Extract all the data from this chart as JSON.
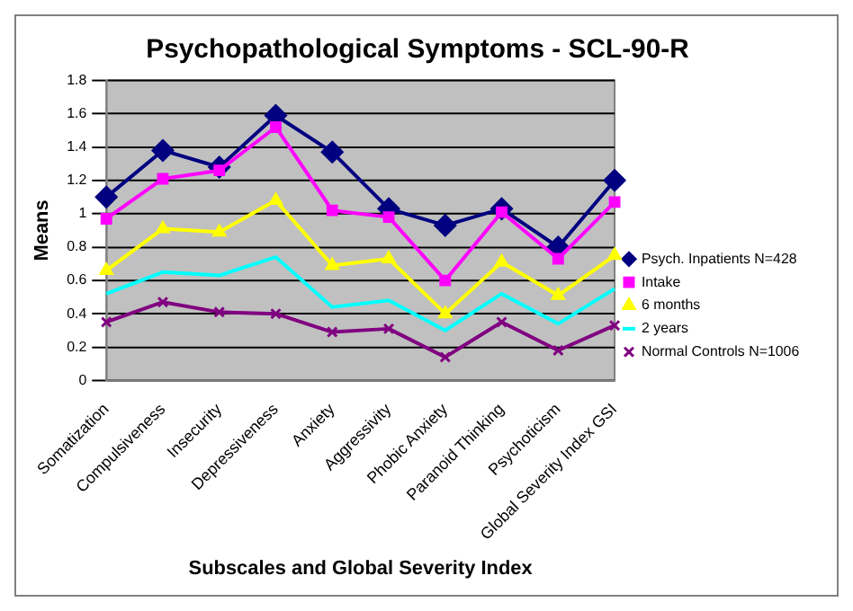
{
  "chart_data": {
    "type": "line",
    "title": "Psychopathological Symptoms - SCL-90-R",
    "xlabel": "Subscales and Global Severity Index",
    "ylabel": "Means",
    "categories": [
      "Somatization",
      "Compulsiveness",
      "Insecurity",
      "Depressiveness",
      "Anxiety",
      "Aggressivity",
      "Phobic Anxiety",
      "Paranoid Thinking",
      "Psychoticism",
      "Global Severity Index GSI"
    ],
    "series": [
      {
        "name": "Psych. Inpatients N=428",
        "color": "#000080",
        "marker": "diamond",
        "values": [
          1.1,
          1.38,
          1.28,
          1.59,
          1.37,
          1.03,
          0.93,
          1.03,
          0.8,
          1.2
        ]
      },
      {
        "name": "Intake",
        "color": "#ff00ff",
        "marker": "square",
        "values": [
          0.97,
          1.21,
          1.26,
          1.52,
          1.02,
          0.98,
          0.6,
          1.01,
          0.73,
          1.07
        ]
      },
      {
        "name": "6 months",
        "color": "#ffff00",
        "marker": "triangle",
        "values": [
          0.66,
          0.91,
          0.89,
          1.08,
          0.69,
          0.73,
          0.4,
          0.71,
          0.51,
          0.75
        ]
      },
      {
        "name": "2 years",
        "color": "#00ffff",
        "marker": "none",
        "values": [
          0.52,
          0.65,
          0.63,
          0.74,
          0.44,
          0.48,
          0.3,
          0.52,
          0.34,
          0.55
        ]
      },
      {
        "name": "Normal Controls N=1006",
        "color": "#800080",
        "marker": "cross",
        "values": [
          0.35,
          0.47,
          0.41,
          0.4,
          0.29,
          0.31,
          0.14,
          0.35,
          0.18,
          0.33
        ]
      }
    ],
    "ylim": [
      0,
      1.8
    ],
    "yticks": [
      0,
      0.2,
      0.4,
      0.6,
      0.8,
      1,
      1.2,
      1.4,
      1.6,
      1.8
    ],
    "grid": "y",
    "legend": "right"
  }
}
